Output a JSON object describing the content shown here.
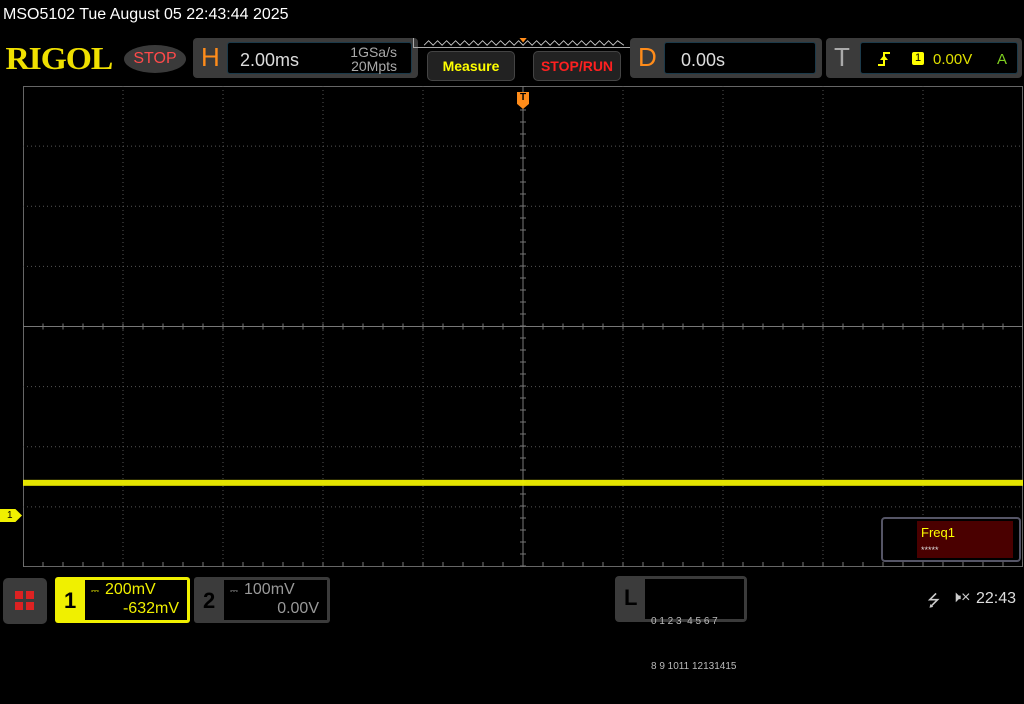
{
  "status_bar": {
    "title": "MSO5102  Tue August 05 22:43:44 2025"
  },
  "header": {
    "logo": "RIGOL",
    "run_state": "STOP",
    "horizontal": {
      "letter": "H",
      "timebase": "2.00ms",
      "sample_rate": "1GSa/s",
      "memory_depth": "20Mpts"
    },
    "measure_label": "Measure",
    "stop_run_label": "STOP/RUN",
    "delay": {
      "letter": "D",
      "value": "0.00s"
    },
    "trigger": {
      "letter": "T",
      "source": "1",
      "level": "0.00V",
      "mode": "A",
      "edge_icon": "rising-edge-icon"
    }
  },
  "graticule": {
    "h_divisions": 10,
    "v_divisions": 8,
    "trace_color": "#f0f000",
    "trace_level_div": -2.6,
    "trigger_marker": "T",
    "channel_marker": "1"
  },
  "measure_box": {
    "label": "Freq1",
    "value": "*****"
  },
  "footer": {
    "ch1": {
      "number": "1",
      "scale": "200mV",
      "offset": "-632mV",
      "color": "#f0f000"
    },
    "ch2": {
      "number": "2",
      "scale": "100mV",
      "offset": "0.00V"
    },
    "logic": {
      "letter": "L",
      "row1": "0 1 2 3  4 5 6 7",
      "row2": "8 9 1011 12131415"
    },
    "clock": "22:43"
  }
}
